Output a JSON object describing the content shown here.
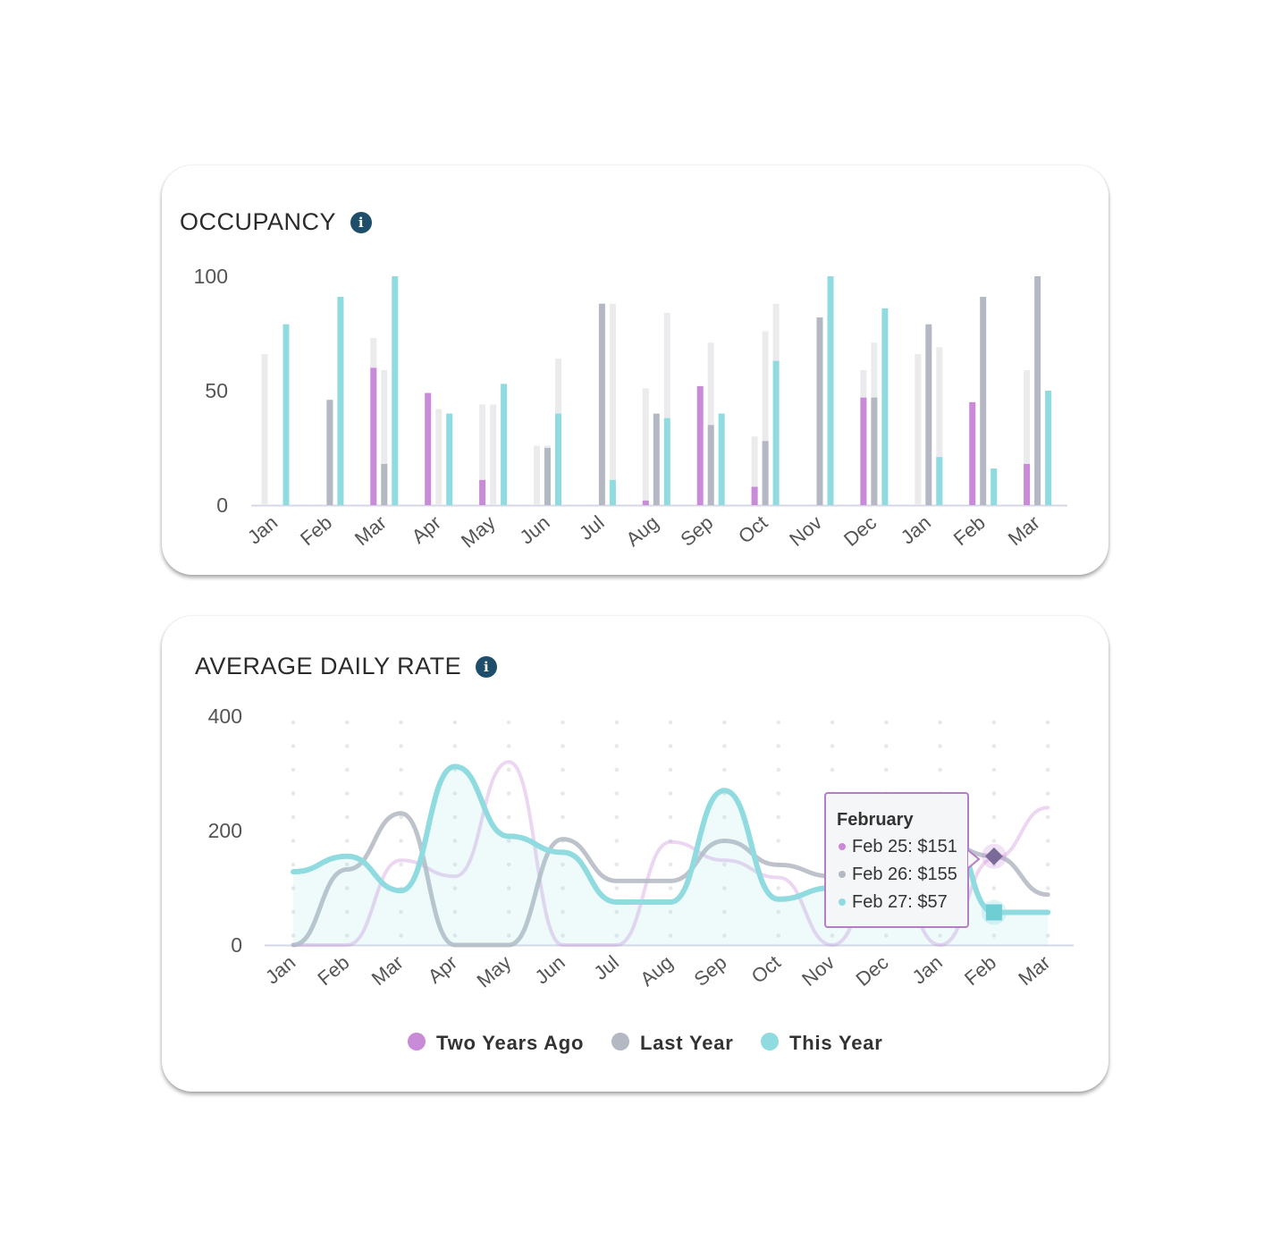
{
  "occupancy": {
    "title": "OCCUPANCY",
    "info_icon": "info-icon",
    "chart_data": {
      "type": "bar",
      "ylim": [
        0,
        100
      ],
      "yticks": [
        "0",
        "50",
        "100"
      ],
      "categories": [
        "Jan",
        "Feb",
        "Mar",
        "Apr",
        "May",
        "Jun",
        "Jul",
        "Aug",
        "Sep",
        "Oct",
        "Nov",
        "Dec",
        "Jan",
        "Feb",
        "Mar"
      ],
      "series": [
        {
          "color": "#c98ad8",
          "faded_values": [
            66,
            0,
            73,
            0,
            44,
            26,
            0,
            51,
            0,
            30,
            0,
            59,
            66,
            0,
            59
          ],
          "values": [
            0,
            0,
            60,
            49,
            11,
            0,
            0,
            2,
            52,
            8,
            0,
            47,
            0,
            45,
            18
          ]
        },
        {
          "color": "#b3b8c2",
          "faded_values": [
            0,
            46,
            59,
            42,
            44,
            26,
            88,
            0,
            71,
            76,
            0,
            71,
            0,
            0,
            0
          ],
          "values": [
            0,
            46,
            18,
            0,
            0,
            25,
            88,
            40,
            35,
            28,
            82,
            47,
            79,
            91,
            100
          ]
        },
        {
          "color": "#8fdbe0",
          "faded_values": [
            0,
            0,
            0,
            0,
            0,
            64,
            88,
            84,
            0,
            88,
            0,
            0,
            69,
            0,
            0
          ],
          "values": [
            79,
            91,
            100,
            40,
            53,
            40,
            11,
            38,
            40,
            63,
            100,
            86,
            21,
            16,
            50
          ]
        }
      ]
    }
  },
  "adr": {
    "title": "AVERAGE DAILY RATE",
    "info_icon": "info-icon",
    "chart_data": {
      "type": "line",
      "ylim": [
        0,
        400
      ],
      "yticks": [
        "0",
        "200",
        "400"
      ],
      "categories": [
        "Jan",
        "Feb",
        "Mar",
        "Apr",
        "May",
        "Jun",
        "Jul",
        "Aug",
        "Sep",
        "Oct",
        "Nov",
        "Dec",
        "Jan",
        "Feb",
        "Mar"
      ],
      "series": [
        {
          "name": "Two Years Ago",
          "color": "#c98ad8",
          "values": [
            0,
            0,
            148,
            120,
            320,
            0,
            0,
            180,
            148,
            118,
            0,
            148,
            0,
            151,
            240
          ]
        },
        {
          "name": "Last Year",
          "color": "#b3b8c2",
          "values": [
            0,
            132,
            230,
            0,
            0,
            185,
            112,
            112,
            182,
            140,
            120,
            140,
            180,
            155,
            88
          ]
        },
        {
          "name": "This Year",
          "color": "#8fdbe0",
          "values": [
            128,
            155,
            95,
            312,
            190,
            162,
            75,
            75,
            270,
            80,
            100,
            140,
            250,
            57,
            57
          ]
        }
      ],
      "tooltip": {
        "title": "February",
        "rows": [
          {
            "label": "Feb 25: $151",
            "color": "#c98ad8"
          },
          {
            "label": "Feb 26: $155",
            "color": "#b3b8c2"
          },
          {
            "label": "Feb 27: $57",
            "color": "#8fdbe0"
          }
        ]
      },
      "legend": {
        "placement": "bottom-center"
      }
    }
  }
}
